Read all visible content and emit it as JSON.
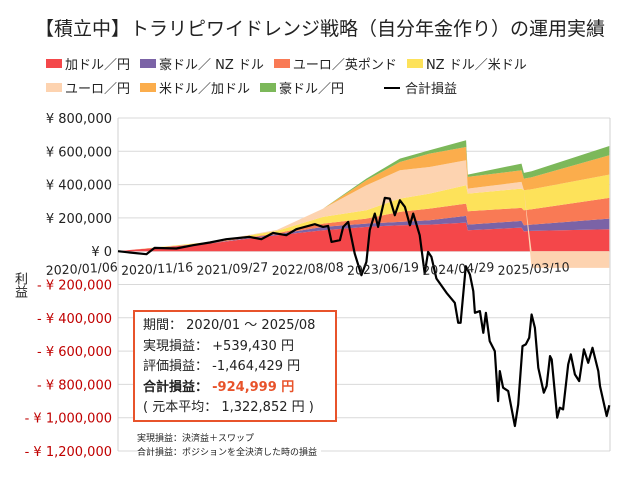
{
  "title": "【積立中】トラリピワイドレンジ戦略（自分年金作り）の運用実績",
  "info": {
    "period_label": "期間：",
    "period_value": "2020/01 ～ 2025/08",
    "realized_label": "実現損益：",
    "realized_value": "+539,430 円",
    "unrealized_label": "評価損益：",
    "unrealized_value": "-1,464,429 円",
    "total_label": "合計損益：",
    "total_value": "-924,999 円",
    "principal_text": "( 元本平均： 1,322,852 円 )"
  },
  "notes": [
    "実現損益：決済益＋スワップ",
    "合計損益：ポジションを全決済した時の損益"
  ],
  "chart_data": {
    "type": "area",
    "title": "【積立中】トラリピワイドレンジ戦略（自分年金作り）の運用実績",
    "ylabel": "利益",
    "ylim": [
      -1200000,
      800000
    ],
    "yticks": [
      800000,
      600000,
      400000,
      200000,
      0,
      -200000,
      -400000,
      -600000,
      -800000,
      -1000000,
      -1200000
    ],
    "ytick_labels": [
      "¥ 800,000",
      "¥ 600,000",
      "¥ 400,000",
      "¥ 200,000",
      "¥ 0",
      "- ¥ 200,000",
      "- ¥ 400,000",
      "- ¥ 600,000",
      "- ¥ 800,000",
      "- ¥ 1,000,000",
      "- ¥ 1,200,000"
    ],
    "xlim": [
      "2020-01-06",
      "2025-08-25"
    ],
    "xticks": [
      "2020-01-06",
      "2020-11-16",
      "2021-09-27",
      "2022-08-08",
      "2023-06-19",
      "2024-04-29",
      "2025-03-10"
    ],
    "xtick_labels": [
      "2020/01/06",
      "2020/11/16",
      "2021/09/27",
      "2022/08/08",
      "2023/06/19",
      "2024/04/29",
      "2025/03/10"
    ],
    "grid": true,
    "legend_position": "top",
    "negative_label_color": "#c00000",
    "stack_dates": [
      "2020-01-06",
      "2020-03-01",
      "2021-01-24",
      "2021-11-01",
      "2022-05-13",
      "2022-11-10",
      "2023-03-30",
      "2023-08-01",
      "2024-01-01",
      "2024-01-08",
      "2024-08-20",
      "2024-08-30",
      "2024-10-01",
      "2025-08-22"
    ],
    "series": [
      {
        "name": "加ドル／円",
        "color": "#f4474a",
        "values": [
          0,
          8000,
          46000,
          96000,
          126000,
          146000,
          156000,
          160000,
          172000,
          126000,
          142000,
          120000,
          122000,
          132000
        ]
      },
      {
        "name": "豪ドル／ NZ ドル",
        "color": "#7b63a6",
        "values": [
          0,
          0,
          2000,
          6000,
          20000,
          20000,
          20000,
          26000,
          40000,
          34000,
          40000,
          36000,
          38000,
          64000
        ]
      },
      {
        "name": "ユーロ／英ポンド",
        "color": "#f97a55",
        "values": [
          0,
          0,
          3000,
          6000,
          20000,
          30000,
          60000,
          70000,
          74000,
          80000,
          78000,
          90000,
          92000,
          124000
        ]
      },
      {
        "name": "NZ ドル／米ドル",
        "color": "#fde25a",
        "values": [
          0,
          0,
          5000,
          14000,
          40000,
          50000,
          80000,
          90000,
          110000,
          106000,
          116000,
          120000,
          120000,
          140000
        ]
      },
      {
        "name": "ユーロ／円",
        "color": "#fdd3b0",
        "values": [
          0,
          0,
          0,
          6000,
          50000,
          150000,
          170000,
          160000,
          150000,
          30000,
          40000,
          0,
          -100000,
          -100000
        ]
      },
      {
        "name": "米ドル／加ドル",
        "color": "#fbad4c",
        "values": [
          0,
          0,
          0,
          0,
          0,
          30000,
          50000,
          80000,
          80000,
          70000,
          70000,
          70000,
          72000,
          116000
        ]
      },
      {
        "name": "豪ドル／円",
        "color": "#7cb85a",
        "values": [
          0,
          0,
          0,
          0,
          0,
          10000,
          20000,
          20000,
          40000,
          14000,
          40000,
          34000,
          36000,
          56000
        ]
      }
    ],
    "line": {
      "name": "合計損益",
      "color": "#000000",
      "points": [
        [
          "2020-01-06",
          0
        ],
        [
          "2020-02-24",
          -8000
        ],
        [
          "2020-05-04",
          -18000
        ],
        [
          "2020-06-07",
          20000
        ],
        [
          "2020-09-06",
          16000
        ],
        [
          "2020-11-15",
          36000
        ],
        [
          "2021-01-24",
          52000
        ],
        [
          "2021-04-03",
          72000
        ],
        [
          "2021-07-10",
          86000
        ],
        [
          "2021-08-28",
          72000
        ],
        [
          "2021-10-16",
          110000
        ],
        [
          "2021-12-10",
          96000
        ],
        [
          "2022-01-21",
          132000
        ],
        [
          "2022-04-08",
          162000
        ],
        [
          "2022-05-13",
          146000
        ],
        [
          "2022-06-03",
          152000
        ],
        [
          "2022-06-17",
          56000
        ],
        [
          "2022-07-22",
          66000
        ],
        [
          "2022-08-05",
          146000
        ],
        [
          "2022-08-26",
          176000
        ],
        [
          "2022-09-22",
          -14000
        ],
        [
          "2022-10-20",
          -144000
        ],
        [
          "2022-11-10",
          -64000
        ],
        [
          "2022-11-24",
          126000
        ],
        [
          "2022-12-15",
          226000
        ],
        [
          "2022-12-29",
          146000
        ],
        [
          "2023-01-26",
          320000
        ],
        [
          "2023-02-16",
          316000
        ],
        [
          "2023-03-09",
          216000
        ],
        [
          "2023-03-30",
          306000
        ],
        [
          "2023-04-20",
          266000
        ],
        [
          "2023-05-11",
          156000
        ],
        [
          "2023-05-25",
          226000
        ],
        [
          "2023-06-21",
          96000
        ],
        [
          "2023-07-12",
          -134000
        ],
        [
          "2023-07-26",
          -4000
        ],
        [
          "2023-08-09",
          -34000
        ],
        [
          "2023-08-30",
          -164000
        ],
        [
          "2023-10-11",
          -250000
        ],
        [
          "2023-11-15",
          -310000
        ],
        [
          "2023-11-29",
          -430000
        ],
        [
          "2023-12-09",
          -430000
        ],
        [
          "2023-12-31",
          -90000
        ],
        [
          "2024-01-17",
          -140000
        ],
        [
          "2024-01-31",
          -240000
        ],
        [
          "2024-02-07",
          -370000
        ],
        [
          "2024-02-28",
          -360000
        ],
        [
          "2024-03-13",
          -490000
        ],
        [
          "2024-03-24",
          -370000
        ],
        [
          "2024-04-09",
          -540000
        ],
        [
          "2024-04-30",
          -600000
        ],
        [
          "2024-05-14",
          -900000
        ],
        [
          "2024-05-21",
          -720000
        ],
        [
          "2024-06-04",
          -820000
        ],
        [
          "2024-06-25",
          -840000
        ],
        [
          "2024-07-23",
          -1050000
        ],
        [
          "2024-08-06",
          -920000
        ],
        [
          "2024-08-24",
          -570000
        ],
        [
          "2024-09-07",
          -560000
        ],
        [
          "2024-09-21",
          -520000
        ],
        [
          "2024-10-01",
          -380000
        ],
        [
          "2024-10-15",
          -460000
        ],
        [
          "2024-10-29",
          -700000
        ],
        [
          "2024-11-21",
          -850000
        ],
        [
          "2024-12-03",
          -810000
        ],
        [
          "2024-12-17",
          -630000
        ],
        [
          "2024-12-24",
          -650000
        ],
        [
          "2025-01-16",
          -1000000
        ],
        [
          "2025-01-27",
          -940000
        ],
        [
          "2025-02-10",
          -950000
        ],
        [
          "2025-03-03",
          -680000
        ],
        [
          "2025-03-14",
          -620000
        ],
        [
          "2025-03-31",
          -740000
        ],
        [
          "2025-04-18",
          -780000
        ],
        [
          "2025-05-08",
          -590000
        ],
        [
          "2025-05-26",
          -670000
        ],
        [
          "2025-06-13",
          -580000
        ],
        [
          "2025-07-07",
          -720000
        ],
        [
          "2025-07-14",
          -810000
        ],
        [
          "2025-08-11",
          -990000
        ],
        [
          "2025-08-22",
          -924999
        ]
      ]
    }
  }
}
